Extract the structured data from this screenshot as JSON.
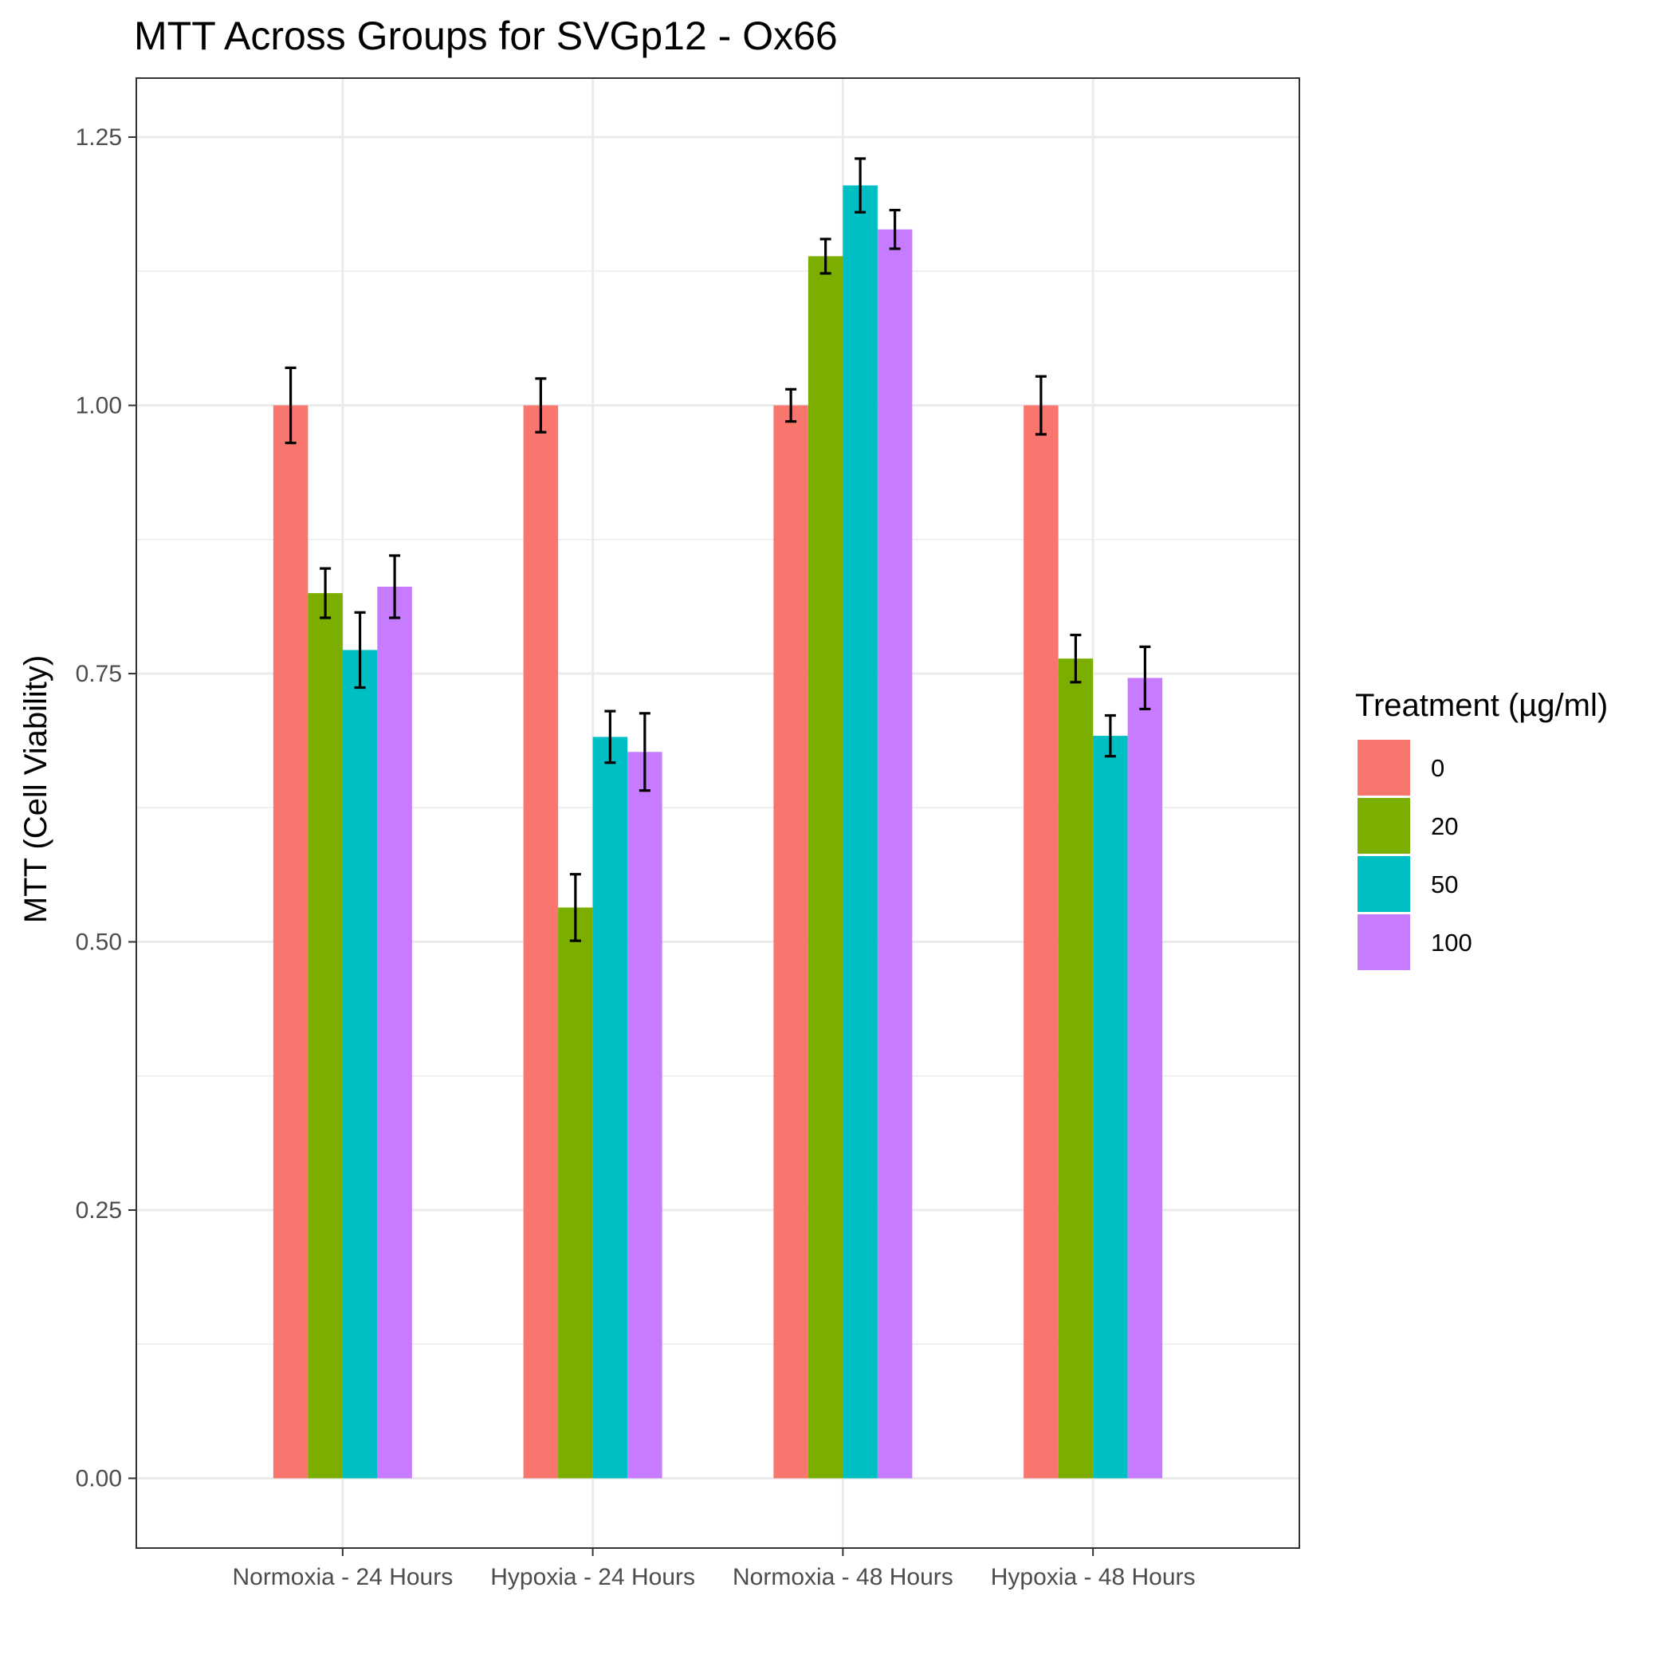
{
  "chart_data": {
    "type": "bar",
    "title": "MTT Across Groups for SVGp12 - Ox66",
    "xlabel": "",
    "ylabel": "MTT (Cell Viability)",
    "ylim": [
      -0.065,
      1.305
    ],
    "yticks": [
      "0.00",
      "0.25",
      "0.50",
      "0.75",
      "1.00",
      "1.25"
    ],
    "grid": true,
    "legend_position": "right",
    "legend_title": "Treatment (µg/ml)",
    "categories": [
      "Normoxia - 24 Hours",
      "Hypoxia - 24 Hours",
      "Normoxia - 48 Hours",
      "Hypoxia - 48 Hours"
    ],
    "series": [
      {
        "name": "0",
        "color": "#F8766D",
        "values": [
          1.0,
          1.0,
          1.0,
          1.0
        ],
        "errors": [
          0.035,
          0.025,
          0.015,
          0.027
        ]
      },
      {
        "name": "20",
        "color": "#7CAE00",
        "values": [
          0.825,
          0.532,
          1.139,
          0.764
        ],
        "errors": [
          0.023,
          0.031,
          0.016,
          0.022
        ]
      },
      {
        "name": "50",
        "color": "#00BFC4",
        "values": [
          0.772,
          0.691,
          1.205,
          0.692
        ],
        "errors": [
          0.035,
          0.024,
          0.025,
          0.019
        ]
      },
      {
        "name": "100",
        "color": "#C77CFF",
        "values": [
          0.831,
          0.677,
          1.164,
          0.746
        ],
        "errors": [
          0.029,
          0.036,
          0.018,
          0.029
        ]
      }
    ]
  }
}
